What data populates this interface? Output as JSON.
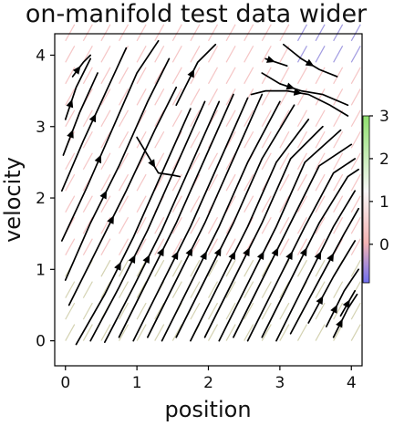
{
  "chart_data": {
    "type": "streamplot",
    "title": "on-manifold test data wider",
    "xlabel": "position",
    "ylabel": "velocity",
    "xlim": [
      -0.15,
      4.15
    ],
    "ylim": [
      -0.35,
      4.3
    ],
    "xticks": [
      0,
      1,
      2,
      3,
      4
    ],
    "yticks": [
      0,
      1,
      2,
      3,
      4
    ],
    "grid": false,
    "colorbar": {
      "ticks": [
        "0",
        "1",
        "2",
        "3"
      ],
      "range": [
        -0.9,
        3
      ],
      "colors": [
        "#6f6ff0",
        "#f4b4b4",
        "#f7f7f7",
        "#8fe06e"
      ]
    },
    "background_quiver_colors": [
      "#f2b8b8",
      "#c9c79f",
      "#8b83d9"
    ],
    "streamlines": [
      {
        "x": [
          0.15,
          0.55,
          0.95,
          1.35,
          1.75
        ],
        "y": [
          -0.05,
          0.65,
          1.45,
          2.35,
          3.25
        ]
      },
      {
        "x": [
          0.35,
          0.75,
          1.15,
          1.55,
          1.95
        ],
        "y": [
          0.0,
          0.75,
          1.55,
          2.45,
          3.35
        ]
      },
      {
        "x": [
          0.55,
          0.95,
          1.35,
          1.75,
          2.15
        ],
        "y": [
          -0.02,
          0.75,
          1.55,
          2.45,
          3.35
        ]
      },
      {
        "x": [
          0.75,
          1.15,
          1.55,
          1.95,
          2.35
        ],
        "y": [
          0.05,
          0.85,
          1.65,
          2.55,
          3.45
        ]
      },
      {
        "x": [
          0.95,
          1.35,
          1.75,
          2.15,
          2.55
        ],
        "y": [
          0.0,
          0.8,
          1.6,
          2.5,
          3.4
        ]
      },
      {
        "x": [
          1.15,
          1.55,
          1.95,
          2.35,
          2.75
        ],
        "y": [
          0.05,
          0.85,
          1.65,
          2.55,
          3.45
        ]
      },
      {
        "x": [
          1.35,
          1.75,
          2.15,
          2.55,
          3.0
        ],
        "y": [
          0.0,
          0.8,
          1.6,
          2.5,
          3.35
        ]
      },
      {
        "x": [
          1.55,
          1.95,
          2.35,
          2.75,
          3.2
        ],
        "y": [
          0.05,
          0.85,
          1.65,
          2.55,
          3.3
        ]
      },
      {
        "x": [
          1.75,
          2.15,
          2.55,
          2.95,
          3.4
        ],
        "y": [
          0.0,
          0.8,
          1.6,
          2.5,
          3.1
        ]
      },
      {
        "x": [
          1.95,
          2.35,
          2.75,
          3.15,
          3.6
        ],
        "y": [
          0.05,
          0.85,
          1.65,
          2.55,
          3.0
        ]
      },
      {
        "x": [
          2.15,
          2.55,
          2.95,
          3.35,
          3.85
        ],
        "y": [
          0.0,
          0.8,
          1.6,
          2.5,
          2.95
        ]
      },
      {
        "x": [
          2.35,
          2.75,
          3.15,
          3.55,
          4.0
        ],
        "y": [
          0.05,
          0.85,
          1.65,
          2.45,
          2.75
        ]
      },
      {
        "x": [
          2.55,
          2.95,
          3.35,
          3.75,
          4.05
        ],
        "y": [
          0.0,
          0.8,
          1.6,
          2.35,
          2.55
        ]
      },
      {
        "x": [
          2.75,
          3.15,
          3.55,
          3.95,
          4.1
        ],
        "y": [
          0.05,
          0.85,
          1.65,
          2.3,
          2.4
        ]
      },
      {
        "x": [
          2.95,
          3.35,
          3.75,
          4.05
        ],
        "y": [
          0.0,
          0.8,
          1.6,
          2.1
        ]
      },
      {
        "x": [
          3.15,
          3.55,
          3.9,
          4.1
        ],
        "y": [
          0.1,
          0.85,
          1.5,
          1.85
        ]
      },
      {
        "x": [
          3.4,
          3.75,
          4.05
        ],
        "y": [
          0.25,
          0.9,
          1.4
        ]
      },
      {
        "x": [
          3.65,
          3.9,
          4.1
        ],
        "y": [
          0.2,
          0.7,
          1.0
        ]
      },
      {
        "x": [
          3.75,
          3.95,
          4.08
        ],
        "y": [
          0.05,
          0.45,
          0.65
        ]
      },
      {
        "x": [
          3.85,
          4.05
        ],
        "y": [
          0.35,
          0.7
        ]
      },
      {
        "x": [
          0.05,
          0.45,
          0.85,
          1.25,
          1.55
        ],
        "y": [
          0.5,
          1.3,
          2.1,
          2.95,
          3.55
        ]
      },
      {
        "x": [
          0.0,
          0.35,
          0.75,
          1.15,
          1.45
        ],
        "y": [
          0.85,
          1.65,
          2.45,
          3.35,
          3.95
        ]
      },
      {
        "x": [
          -0.05,
          0.3,
          0.65,
          1.0,
          1.3
        ],
        "y": [
          1.4,
          2.15,
          2.95,
          3.75,
          4.2
        ]
      },
      {
        "x": [
          -0.05,
          0.25,
          0.55,
          0.85
        ],
        "y": [
          2.1,
          2.8,
          3.45,
          4.1
        ]
      },
      {
        "x": [
          -0.03,
          0.2,
          0.45
        ],
        "y": [
          2.6,
          3.2,
          3.75
        ]
      },
      {
        "x": [
          0.0,
          0.15,
          0.35
        ],
        "y": [
          3.1,
          3.55,
          3.95
        ]
      },
      {
        "x": [
          0.1,
          0.25,
          0.35
        ],
        "y": [
          3.7,
          3.9,
          4.0
        ]
      },
      {
        "x": [
          1.0,
          1.15,
          1.3,
          1.5,
          1.6
        ],
        "y": [
          2.85,
          2.6,
          2.35,
          2.32,
          2.3
        ]
      },
      {
        "x": [
          1.55,
          1.7,
          1.85,
          2.1
        ],
        "y": [
          3.3,
          3.6,
          3.9,
          4.15
        ]
      },
      {
        "x": [
          2.6,
          2.8,
          3.1,
          3.4,
          3.7,
          3.95
        ],
        "y": [
          3.45,
          3.5,
          3.5,
          3.45,
          3.3,
          3.15
        ]
      },
      {
        "x": [
          2.75,
          3.0,
          3.3,
          3.6,
          3.95
        ],
        "y": [
          3.75,
          3.6,
          3.5,
          3.45,
          3.3
        ]
      },
      {
        "x": [
          2.8,
          2.95,
          3.1
        ],
        "y": [
          3.95,
          3.9,
          3.85
        ]
      },
      {
        "x": [
          3.05,
          3.3,
          3.55,
          3.8
        ],
        "y": [
          4.15,
          3.95,
          3.8,
          3.7
        ]
      }
    ]
  }
}
